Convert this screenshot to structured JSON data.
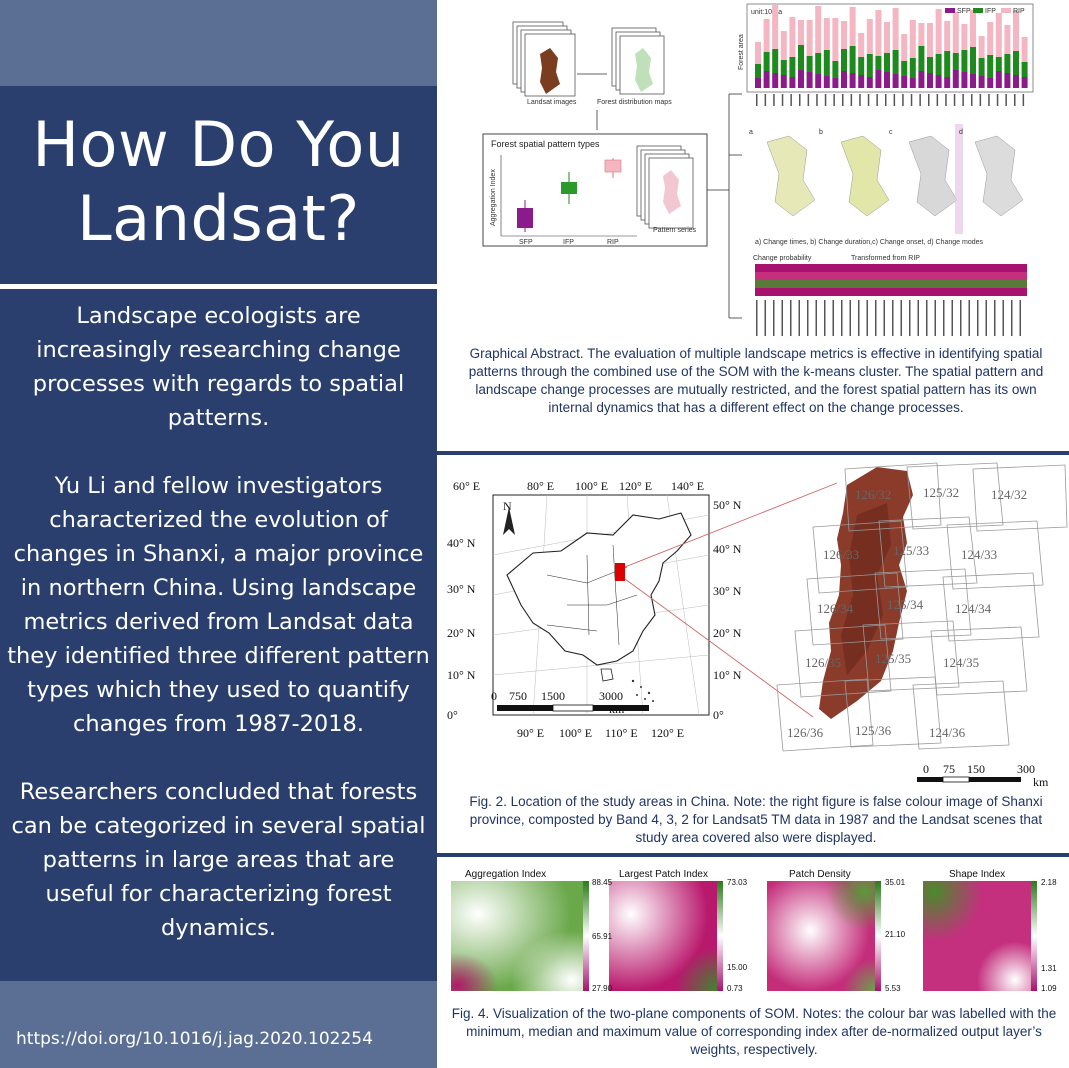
{
  "title": "How Do You Landsat?",
  "paragraphs": [
    "Landscape ecologists are increasingly researching change processes with regards to spatial patterns.",
    "Yu Li and fellow investigators characterized the evolution of changes in Shanxi, a major province in northern China. Using landscape metrics derived from Landsat data they identified three different pattern types which they used to quantify changes from 1987-2018.",
    "Researchers concluded that forests can be categorized in several spatial patterns in large areas that are useful for characterizing forest dynamics."
  ],
  "doi": "https://doi.org/10.1016/j.jag.2020.102254",
  "figures": {
    "graphical_abstract": {
      "caption": "Graphical Abstract. The evaluation of multiple landscape metrics is effective in identifying spatial patterns through the combined use of the SOM with the k-means cluster. The spatial pattern and landscape change processes are mutually restricted, and the forest spatial pattern has its own internal dynamics that has a different effect on the change processes.",
      "landsat_label": "Landsat images",
      "forest_map_label": "Forest distribution maps",
      "pattern_types_label": "Forest spatial pattern types",
      "pattern_series_label": "Pattern series",
      "agg_axis_label": "Aggregation Index",
      "box_categories": [
        "SFP",
        "IFP",
        "RIP"
      ],
      "unit_label": "unit:10³ha",
      "forest_area_label": "Forest area",
      "legend": [
        "SFP",
        "IFP",
        "RIP"
      ],
      "map_panel_labels": [
        "a",
        "b",
        "c",
        "d"
      ],
      "map_panel_caption": "a) Change times, b) Change duration,c) Change onset, d) Change modes",
      "change_prob_label": "Change probability",
      "transformed_label": "Transformed from RIP",
      "colors": {
        "sfp": "#8b1a8b",
        "ifp": "#1e8a1e",
        "rip": "#f4b6c2"
      }
    },
    "fig2": {
      "caption": "Fig. 2. Location of the study areas in China. Note: the right figure is false colour image of Shanxi province, composted by Band 4, 3, 2 for Landsat5 TM data in 1987 and the Landsat scenes that study area covered also were displayed.",
      "lon_labels": [
        "60° E",
        "80° E",
        "100° E",
        "120° E",
        "140° E"
      ],
      "lon_bottom_labels": [
        "90° E",
        "100° E",
        "110° E",
        "120° E"
      ],
      "lat_left_labels": [
        "40° N",
        "30° N",
        "20° N",
        "10° N",
        "0°"
      ],
      "lat_right_labels": [
        "50° N",
        "40° N",
        "30° N",
        "20° N",
        "10° N",
        "0°"
      ],
      "north_label": "N",
      "scale_left": [
        "0",
        "750",
        "1500",
        "3000"
      ],
      "scale_left_unit": "km",
      "scale_right": [
        "0",
        "75",
        "150",
        "300"
      ],
      "scale_right_unit": "km",
      "scenes": [
        "126/32",
        "125/32",
        "124/32",
        "126/33",
        "125/33",
        "124/33",
        "126/34",
        "125/34",
        "124/34",
        "126/35",
        "125/35",
        "124/35",
        "126/36",
        "125/36",
        "124/36"
      ]
    },
    "fig4": {
      "caption": "Fig. 4. Visualization of the two-plane components of SOM. Notes: the colour bar was labelled with the minimum, median and maximum value of corresponding index after de-normalized output layer’s weights, respectively.",
      "panels": [
        {
          "title": "Aggregation Index",
          "max": "88.45",
          "mid": "65.91",
          "min": "27.90"
        },
        {
          "title": "Largest Patch Index",
          "max": "73.03",
          "mid": "15.00",
          "min": "0.73"
        },
        {
          "title": "Patch Density",
          "max": "35.01",
          "mid": "21.10",
          "min": "5.53"
        },
        {
          "title": "Shape Index",
          "max": "2.18",
          "mid": "1.31",
          "min": "1.09"
        }
      ]
    }
  }
}
